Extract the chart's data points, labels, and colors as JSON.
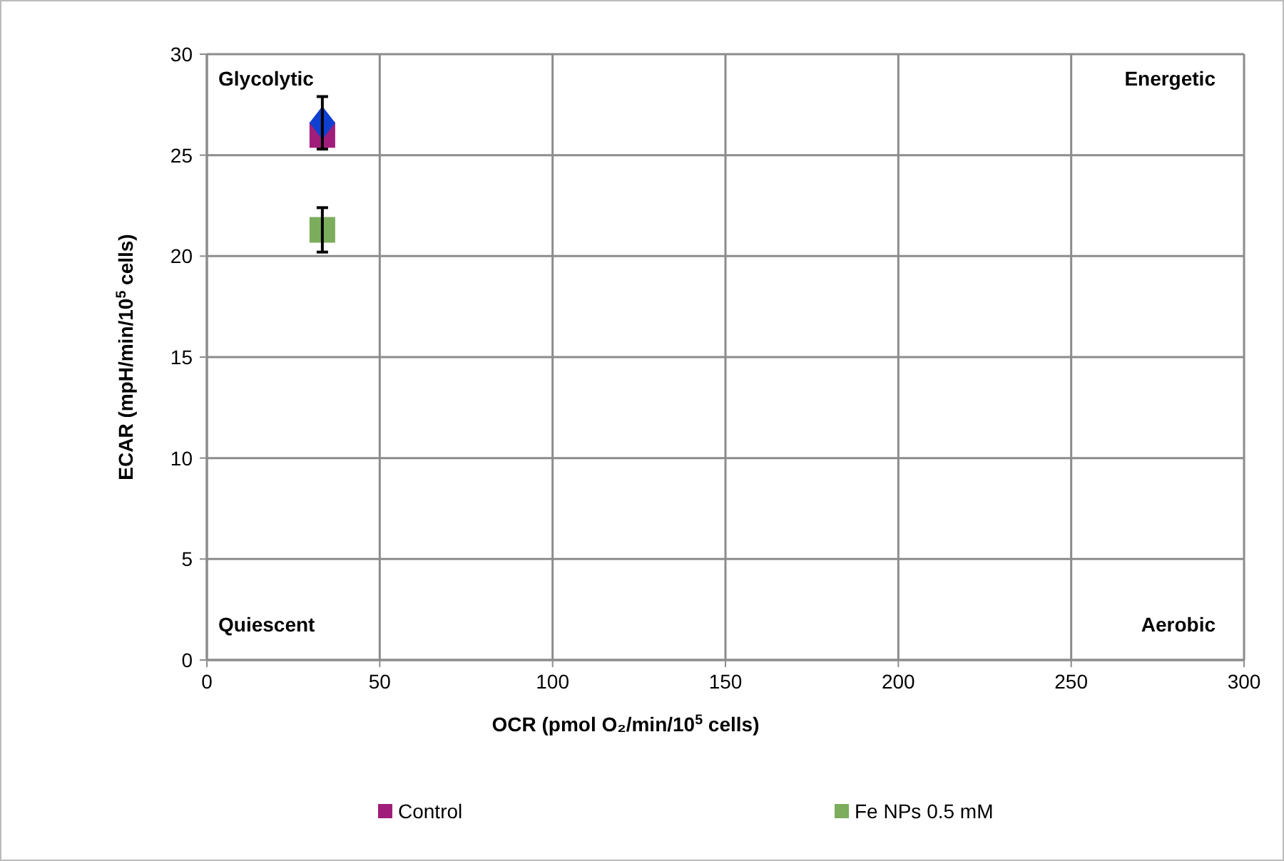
{
  "chart_data": {
    "type": "scatter",
    "xlabel": "OCR (pmol O₂/min/10$^{5}$ cells)",
    "ylabel": "ECAR (mpH/min/10$^{5}$ cells)",
    "annotations": [
      "Glycolytic",
      "Energetic",
      "Quiescent",
      "Aerobic"
    ],
    "xlim": [
      0,
      300
    ],
    "xticks": [
      0,
      50,
      100,
      150,
      200,
      250,
      300
    ],
    "ylim": [
      0,
      30
    ],
    "yticks": [
      0,
      5,
      10,
      15,
      20,
      25,
      30
    ],
    "grid": true,
    "legend": "bottom",
    "x": [
      33.4
    ],
    "series": [
      {
        "name": "Control",
        "color": "#a01e7a",
        "marker": "square",
        "values": [
          26.0
        ]
      },
      {
        "color": "#1040d0",
        "marker": "diamond",
        "values": [
          26.6
        ],
        "errors": [
          1.3
        ]
      },
      {
        "name": "Fe NPs 0.5 mM",
        "color": "#7cad5c",
        "marker": "square",
        "values": [
          21.3
        ],
        "errors": [
          1.1
        ]
      }
    ]
  }
}
